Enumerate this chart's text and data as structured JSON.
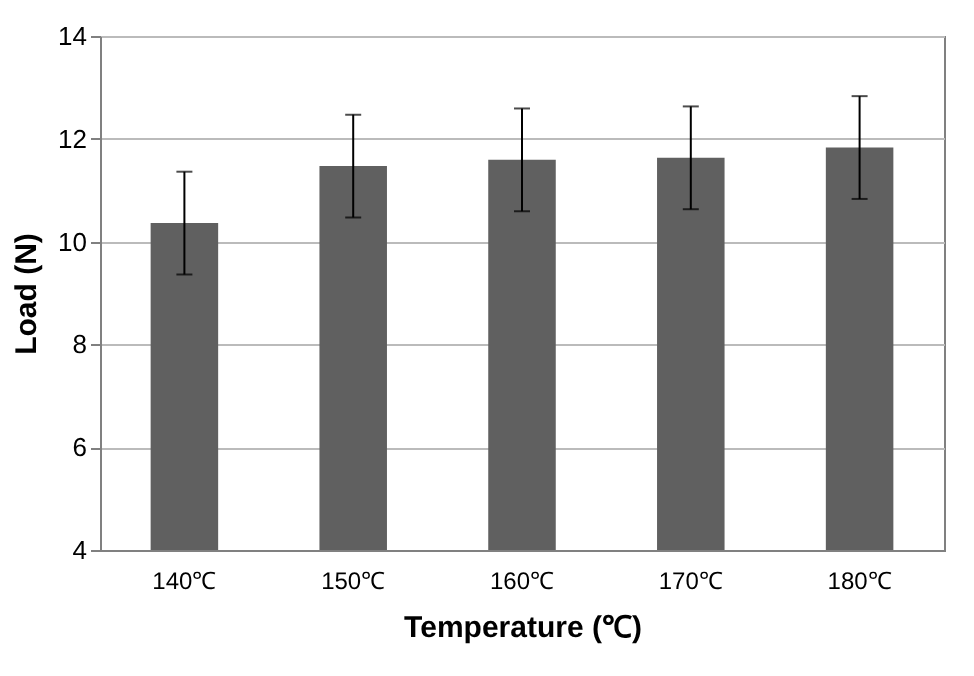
{
  "chart_data": {
    "type": "bar",
    "xlabel": "Temperature (℃)",
    "ylabel": "Load (N)",
    "categories": [
      "140℃",
      "150℃",
      "160℃",
      "170℃",
      "180℃"
    ],
    "values": [
      10.36,
      11.47,
      11.59,
      11.63,
      11.83
    ],
    "errors": [
      1.0,
      1.0,
      1.0,
      1.0,
      1.0
    ],
    "color": "#606060",
    "ylim": [
      4,
      14
    ],
    "yticks": [
      4,
      6,
      8,
      10,
      12,
      14
    ],
    "grid": "y"
  }
}
